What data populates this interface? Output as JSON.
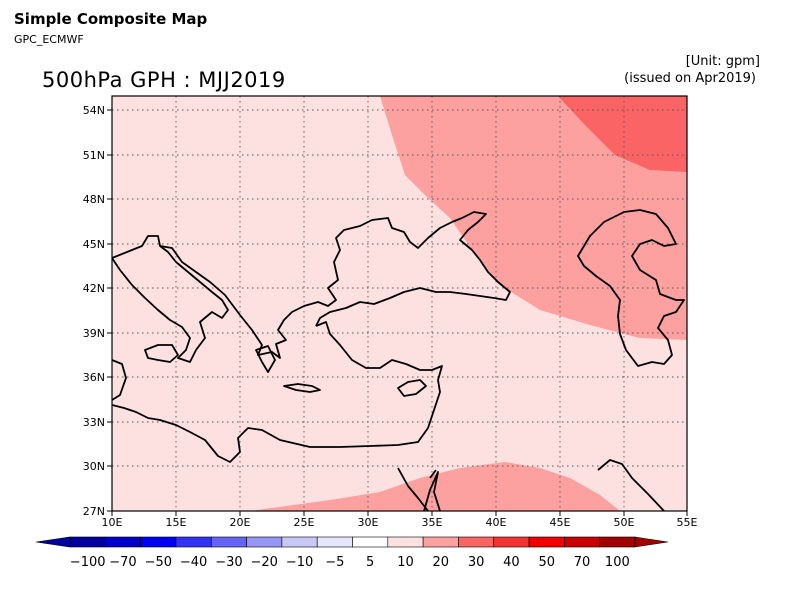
{
  "header": {
    "title": "Simple Composite Map",
    "subtitle": "GPC_ECMWF",
    "unit": "[Unit: gpm]",
    "issued": "(issued on Apr2019)"
  },
  "map": {
    "title": "500hPa GPH : MJJ2019",
    "lon_labels": [
      "10E",
      "15E",
      "20E",
      "25E",
      "30E",
      "35E",
      "40E",
      "45E",
      "50E",
      "55E"
    ],
    "lat_labels": [
      "54N",
      "51N",
      "48N",
      "45N",
      "42N",
      "39N",
      "36N",
      "33N",
      "30N",
      "27N"
    ]
  },
  "colorbar": {
    "labels": [
      "−100",
      "−70",
      "−50",
      "−40",
      "−30",
      "−20",
      "−10",
      "−5",
      "5",
      "10",
      "20",
      "30",
      "40",
      "50",
      "70",
      "100"
    ],
    "colors": [
      "#0000a0",
      "#0000c8",
      "#0000f0",
      "#3232f5",
      "#6464f5",
      "#9696f5",
      "#c8c8f5",
      "#e6e6fa",
      "#ffffff",
      "#fde0e0",
      "#fca0a0",
      "#fa6464",
      "#f53232",
      "#f00000",
      "#c80000",
      "#a00000"
    ]
  },
  "anomaly_colors": {
    "band_5_10": "#fde0e0",
    "band_10_20": "#fca0a0",
    "band_20_30": "#fa6464"
  }
}
